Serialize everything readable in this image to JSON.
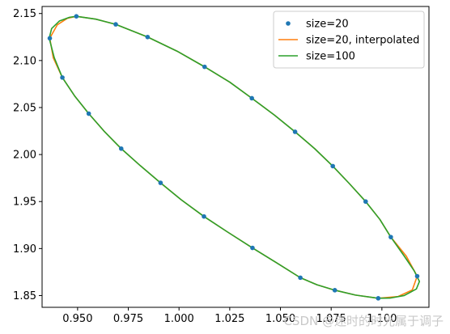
{
  "chart_data": {
    "type": "line",
    "title": "",
    "xlabel": "",
    "ylabel": "",
    "xlim": [
      0.9325,
      1.1232
    ],
    "ylim": [
      1.8375,
      2.1575
    ],
    "xticks": [
      0.95,
      0.975,
      1.0,
      1.025,
      1.05,
      1.075,
      1.1
    ],
    "xtick_labels": [
      "0.950",
      "0.975",
      "1.000",
      "1.025",
      "1.050",
      "1.075",
      "1.100"
    ],
    "yticks": [
      1.85,
      1.9,
      1.95,
      2.0,
      2.05,
      2.1,
      2.15
    ],
    "ytick_labels": [
      "1.85",
      "1.90",
      "1.95",
      "2.00",
      "2.05",
      "2.10",
      "2.15"
    ],
    "grid": false,
    "legend_position": "top-right",
    "series": [
      {
        "name": "size=20",
        "style": "markers",
        "color": "#1f77b4",
        "x": [
          0.9363,
          0.9494,
          0.9688,
          0.9845,
          1.0126,
          1.0359,
          1.0572,
          1.0758,
          1.092,
          1.1044,
          1.1174,
          1.0982,
          1.0768,
          1.0598,
          1.0362,
          1.0123,
          0.9909,
          0.9715,
          0.9555,
          0.9425
        ],
        "y": [
          2.1237,
          2.147,
          2.1385,
          2.125,
          2.0933,
          2.0599,
          2.0242,
          1.9877,
          1.95,
          1.9122,
          1.8706,
          1.8471,
          1.8557,
          1.869,
          1.9007,
          1.9341,
          1.9699,
          2.0063,
          2.0435,
          2.0819
        ]
      },
      {
        "name": "size=20, interpolated",
        "style": "line",
        "color": "#ff7f0e",
        "x": [
          0.9363,
          0.94,
          0.945,
          0.9494,
          0.959,
          0.9688,
          0.9845,
          0.999,
          1.0126,
          1.025,
          1.0359,
          1.047,
          1.0572,
          1.067,
          1.0758,
          1.084,
          1.092,
          1.099,
          1.1044,
          1.112,
          1.1174,
          1.115,
          1.108,
          1.0982,
          1.087,
          1.0768,
          1.068,
          1.0598,
          1.048,
          1.0362,
          1.024,
          1.0123,
          1.001,
          0.9909,
          0.981,
          0.9715,
          0.963,
          0.9555,
          0.9485,
          0.9425,
          0.938,
          0.9363
        ],
        "y": [
          2.1237,
          2.138,
          2.145,
          2.147,
          2.144,
          2.1385,
          2.125,
          2.11,
          2.0933,
          2.077,
          2.0599,
          2.042,
          2.0242,
          2.006,
          1.9877,
          1.969,
          1.95,
          1.931,
          1.9122,
          1.892,
          1.8706,
          1.856,
          1.849,
          1.8471,
          1.8505,
          1.8557,
          1.8615,
          1.869,
          1.885,
          1.9007,
          1.9175,
          1.9341,
          1.952,
          1.9699,
          1.988,
          2.0063,
          2.025,
          2.0435,
          2.0625,
          2.0819,
          2.103,
          2.1237
        ]
      },
      {
        "name": "size=100",
        "style": "line",
        "color": "#2ca02c",
        "x": [
          0.936,
          0.9372,
          0.941,
          0.946,
          0.9494,
          0.959,
          0.9688,
          0.9845,
          0.999,
          1.0126,
          1.025,
          1.0359,
          1.047,
          1.0572,
          1.067,
          1.0758,
          1.084,
          1.092,
          1.099,
          1.1044,
          1.111,
          1.116,
          1.1185,
          1.117,
          1.111,
          1.104,
          1.0982,
          1.087,
          1.0768,
          1.068,
          1.0598,
          1.048,
          1.0362,
          1.024,
          1.0123,
          1.001,
          0.9909,
          0.981,
          0.9715,
          0.963,
          0.9555,
          0.9485,
          0.9425,
          0.9385,
          0.936
        ],
        "y": [
          2.1237,
          2.134,
          2.142,
          2.146,
          2.147,
          2.144,
          2.1385,
          2.125,
          2.11,
          2.0933,
          2.077,
          2.0599,
          2.042,
          2.0242,
          2.006,
          1.9877,
          1.969,
          1.95,
          1.931,
          1.9122,
          1.892,
          1.876,
          1.865,
          1.857,
          1.85,
          1.8473,
          1.8471,
          1.8505,
          1.8557,
          1.8615,
          1.869,
          1.885,
          1.9007,
          1.9175,
          1.9341,
          1.952,
          1.9699,
          1.988,
          2.0063,
          2.025,
          2.0435,
          2.0625,
          2.0819,
          2.103,
          2.1237
        ]
      }
    ]
  },
  "watermark": "CSDN @迷时的时光属于调子"
}
